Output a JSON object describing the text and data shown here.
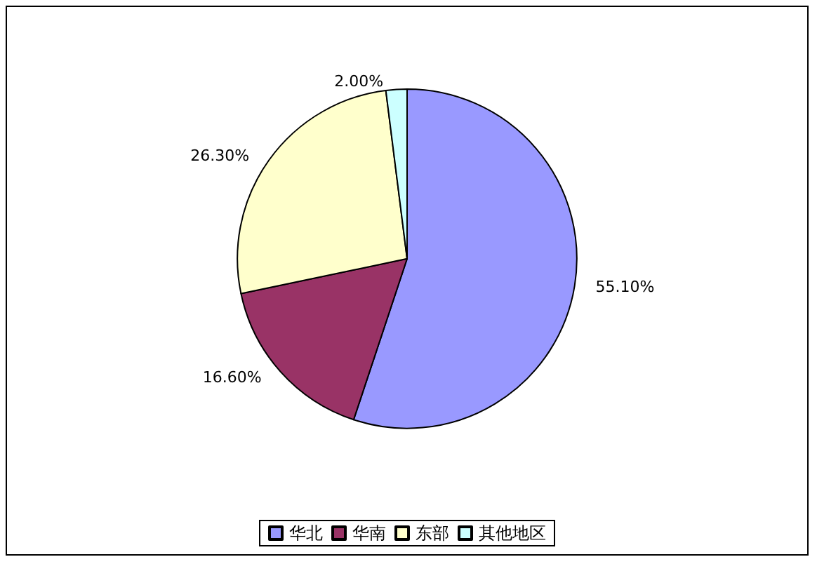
{
  "chart_data": {
    "type": "pie",
    "categories": [
      "华北",
      "华南",
      "东部",
      "其他地区"
    ],
    "values": [
      55.1,
      16.6,
      26.3,
      2.0
    ],
    "value_labels": [
      "55.10%",
      "16.60%",
      "26.30%",
      "2.00%"
    ],
    "colors": [
      "#9999ff",
      "#993366",
      "#ffffcc",
      "#ccffff"
    ],
    "legend": "bottom"
  }
}
